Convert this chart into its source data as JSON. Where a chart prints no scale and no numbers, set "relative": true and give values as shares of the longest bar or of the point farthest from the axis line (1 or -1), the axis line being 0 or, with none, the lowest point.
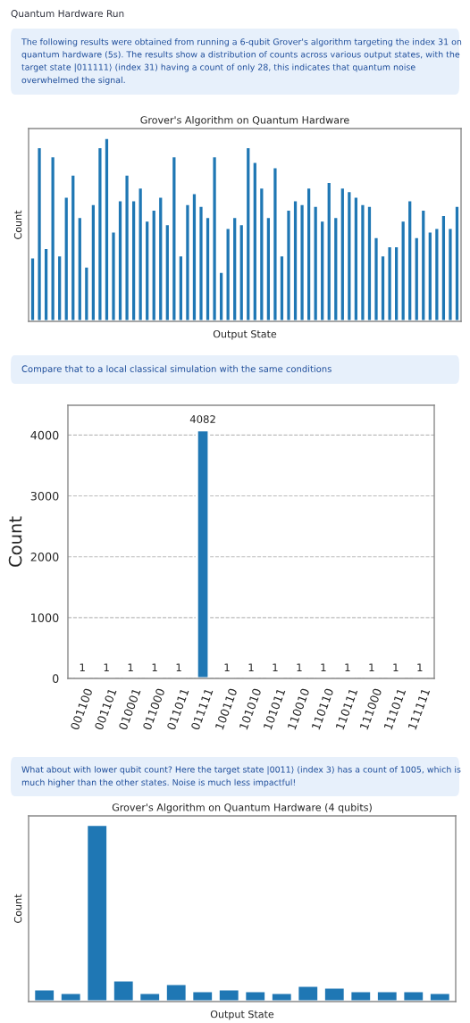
{
  "chart_data": [
    {
      "type": "bar",
      "title": "Grover's Algorithm on Quantum Hardware",
      "xlabel": "Output State",
      "ylabel": "Count",
      "relative": true,
      "annotations": [
        "Quantum Hardware Run",
        "The following results were obtained from running a 6-qubit Grover's algorithm targeting the index 31 on quantum hardware (5s). The results show a distribution of counts across various output states, with the target state |011111⟩ (index 31) having a count of only 28, this indicates that quantum noise overwhelmed the signal."
      ],
      "categories": [
        null,
        null,
        null,
        null,
        null,
        null,
        null,
        null,
        null,
        null,
        null,
        null,
        null,
        null,
        null,
        null,
        null,
        null,
        null,
        null,
        null,
        null,
        null,
        null,
        null,
        null,
        null,
        null,
        null,
        null,
        null,
        null,
        null,
        null,
        null,
        null,
        null,
        null,
        null,
        null,
        null,
        null,
        null,
        null,
        null,
        null,
        null,
        null,
        null,
        null,
        null,
        null,
        null,
        null,
        null,
        null,
        null,
        null,
        null,
        null,
        null,
        null,
        null,
        null
      ],
      "values": [
        0.35,
        0.95,
        0.4,
        0.9,
        0.36,
        0.68,
        0.8,
        0.57,
        0.3,
        0.64,
        0.95,
        1.0,
        0.49,
        0.66,
        0.8,
        0.66,
        0.73,
        0.55,
        0.61,
        0.68,
        0.53,
        0.9,
        0.36,
        0.64,
        0.7,
        0.63,
        0.57,
        0.9,
        0.27,
        0.51,
        0.57,
        0.53,
        0.95,
        0.87,
        0.73,
        0.57,
        0.84,
        0.36,
        0.61,
        0.66,
        0.64,
        0.73,
        0.63,
        0.55,
        0.76,
        0.57,
        0.73,
        0.71,
        0.68,
        0.64,
        0.63,
        0.46,
        0.36,
        0.41,
        0.41,
        0.55,
        0.66,
        0.46,
        0.61,
        0.49,
        0.51,
        0.58,
        0.51,
        0.63
      ],
      "color": "#1f77b4"
    },
    {
      "type": "bar",
      "ylabel": "Count",
      "annotations": [
        "Compare that to a local classical simulation with the same conditions"
      ],
      "categories": [
        "001100",
        "001101",
        "010001",
        "011000",
        "011011",
        "011111",
        "100110",
        "101010",
        "101011",
        "110010",
        "110110",
        "110111",
        "111000",
        "111011",
        "111111"
      ],
      "values": [
        1,
        1,
        1,
        1,
        1,
        4082,
        1,
        1,
        1,
        1,
        1,
        1,
        1,
        1,
        1
      ],
      "color": "#1f77b4",
      "data_labels": true,
      "ylim": [
        0,
        4490
      ],
      "yticks": [
        0,
        1000,
        2000,
        3000,
        4000
      ],
      "grid": "y"
    },
    {
      "type": "bar",
      "title": "Grover's Algorithm on Quantum Hardware (4 qubits)",
      "xlabel": "Output State",
      "ylabel": "Count",
      "relative": true,
      "annotations": [
        "What about with lower qubit count? Here the target state |0011⟩ (index 3) has a count of 1005, which is much higher than the other states. Noise is much less impactful!"
      ],
      "categories": [
        null,
        null,
        null,
        null,
        null,
        null,
        null,
        null,
        null,
        null,
        null,
        null,
        null,
        null,
        null,
        null
      ],
      "values": [
        0.07,
        0.05,
        1.0,
        0.12,
        0.05,
        0.1,
        0.06,
        0.07,
        0.06,
        0.05,
        0.09,
        0.08,
        0.06,
        0.06,
        0.06,
        0.05
      ],
      "color": "#1f77b4"
    }
  ]
}
